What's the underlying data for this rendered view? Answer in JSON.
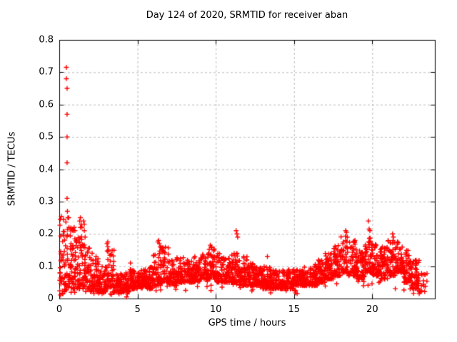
{
  "chart_data": {
    "type": "scatter",
    "title": "Day 124 of 2020, SRMTID for receiver aban",
    "xlabel": "GPS time / hours",
    "ylabel": "SRMTID / TECUs",
    "xlim": [
      0,
      24
    ],
    "ylim": [
      0,
      0.8
    ],
    "xtick_values": [
      0,
      5,
      10,
      15,
      20
    ],
    "xtick_labels": [
      "0",
      "5",
      "10",
      "15",
      "20"
    ],
    "ytick_values": [
      0,
      0.1,
      0.2,
      0.3,
      0.4,
      0.5,
      0.6,
      0.7,
      0.8
    ],
    "ytick_labels": [
      "0",
      "0.1",
      "0.2",
      "0.3",
      "0.4",
      "0.5",
      "0.6",
      "0.7",
      "0.8"
    ],
    "grid": true,
    "legend": "none",
    "marker": "+",
    "marker_color": "#ff0000",
    "grid_color": "#b8b8b8",
    "axis_color": "#000000",
    "background_color": "#ffffff",
    "seed": 124,
    "bin_width": 0.5,
    "points_per_bin": 56,
    "bins": [
      [
        0.0,
        0.02,
        0.27
      ],
      [
        0.5,
        0.03,
        0.22
      ],
      [
        1.0,
        0.03,
        0.2
      ],
      [
        1.5,
        0.03,
        0.17
      ],
      [
        2.0,
        0.02,
        0.13
      ],
      [
        2.5,
        0.02,
        0.1
      ],
      [
        3.0,
        0.03,
        0.15
      ],
      [
        3.5,
        0.02,
        0.08
      ],
      [
        4.0,
        0.02,
        0.08
      ],
      [
        4.5,
        0.03,
        0.09
      ],
      [
        5.0,
        0.03,
        0.09
      ],
      [
        5.5,
        0.03,
        0.1
      ],
      [
        6.0,
        0.04,
        0.15
      ],
      [
        6.5,
        0.05,
        0.16
      ],
      [
        7.0,
        0.04,
        0.12
      ],
      [
        7.5,
        0.05,
        0.13
      ],
      [
        8.0,
        0.05,
        0.12
      ],
      [
        8.5,
        0.05,
        0.13
      ],
      [
        9.0,
        0.06,
        0.15
      ],
      [
        9.5,
        0.06,
        0.16
      ],
      [
        10.0,
        0.05,
        0.14
      ],
      [
        10.5,
        0.05,
        0.13
      ],
      [
        11.0,
        0.05,
        0.15
      ],
      [
        11.5,
        0.04,
        0.13
      ],
      [
        12.0,
        0.04,
        0.11
      ],
      [
        12.5,
        0.04,
        0.1
      ],
      [
        13.0,
        0.03,
        0.1
      ],
      [
        13.5,
        0.03,
        0.09
      ],
      [
        14.0,
        0.03,
        0.09
      ],
      [
        14.5,
        0.03,
        0.09
      ],
      [
        15.0,
        0.04,
        0.09
      ],
      [
        15.5,
        0.04,
        0.1
      ],
      [
        16.0,
        0.04,
        0.11
      ],
      [
        16.5,
        0.05,
        0.12
      ],
      [
        17.0,
        0.06,
        0.14
      ],
      [
        17.5,
        0.07,
        0.17
      ],
      [
        18.0,
        0.08,
        0.2
      ],
      [
        18.5,
        0.07,
        0.18
      ],
      [
        19.0,
        0.06,
        0.15
      ],
      [
        19.5,
        0.08,
        0.2
      ],
      [
        20.0,
        0.07,
        0.17
      ],
      [
        20.5,
        0.06,
        0.16
      ],
      [
        21.0,
        0.07,
        0.19
      ],
      [
        21.5,
        0.08,
        0.18
      ],
      [
        22.0,
        0.05,
        0.15
      ],
      [
        22.5,
        0.03,
        0.12
      ],
      [
        23.0,
        0.02,
        0.08,
        15
      ]
    ],
    "spikes": [
      [
        0.45,
        0.715
      ],
      [
        0.45,
        0.68
      ],
      [
        0.5,
        0.65
      ],
      [
        0.5,
        0.57
      ],
      [
        0.5,
        0.5
      ],
      [
        0.5,
        0.42
      ],
      [
        0.5,
        0.31
      ],
      [
        0.52,
        0.27
      ],
      [
        0.55,
        0.25
      ],
      [
        0.6,
        0.25
      ],
      [
        0.62,
        0.22
      ],
      [
        0.9,
        0.21
      ],
      [
        0.95,
        0.22
      ],
      [
        1.0,
        0.21
      ],
      [
        1.3,
        0.24
      ],
      [
        1.35,
        0.25
      ],
      [
        1.35,
        0.22
      ],
      [
        1.4,
        0.23
      ],
      [
        1.45,
        0.22
      ],
      [
        1.55,
        0.24
      ],
      [
        1.6,
        0.23
      ],
      [
        1.6,
        0.21
      ],
      [
        1.65,
        0.19
      ],
      [
        2.1,
        0.14
      ],
      [
        3.05,
        0.17
      ],
      [
        3.1,
        0.175
      ],
      [
        3.1,
        0.16
      ],
      [
        3.15,
        0.15
      ],
      [
        4.3,
        0.005
      ],
      [
        4.55,
        0.11
      ],
      [
        6.3,
        0.175
      ],
      [
        6.35,
        0.18
      ],
      [
        6.4,
        0.17
      ],
      [
        6.45,
        0.16
      ],
      [
        9.65,
        0.165
      ],
      [
        9.7,
        0.16
      ],
      [
        11.3,
        0.21
      ],
      [
        11.35,
        0.2
      ],
      [
        11.4,
        0.19
      ],
      [
        13.3,
        0.13
      ],
      [
        15.2,
        0.015
      ],
      [
        18.3,
        0.21
      ],
      [
        18.35,
        0.205
      ],
      [
        19.75,
        0.24
      ],
      [
        19.8,
        0.215
      ],
      [
        19.85,
        0.21
      ],
      [
        21.3,
        0.2
      ],
      [
        21.35,
        0.19
      ],
      [
        23.0,
        0.015
      ],
      [
        23.05,
        0.02
      ]
    ]
  }
}
